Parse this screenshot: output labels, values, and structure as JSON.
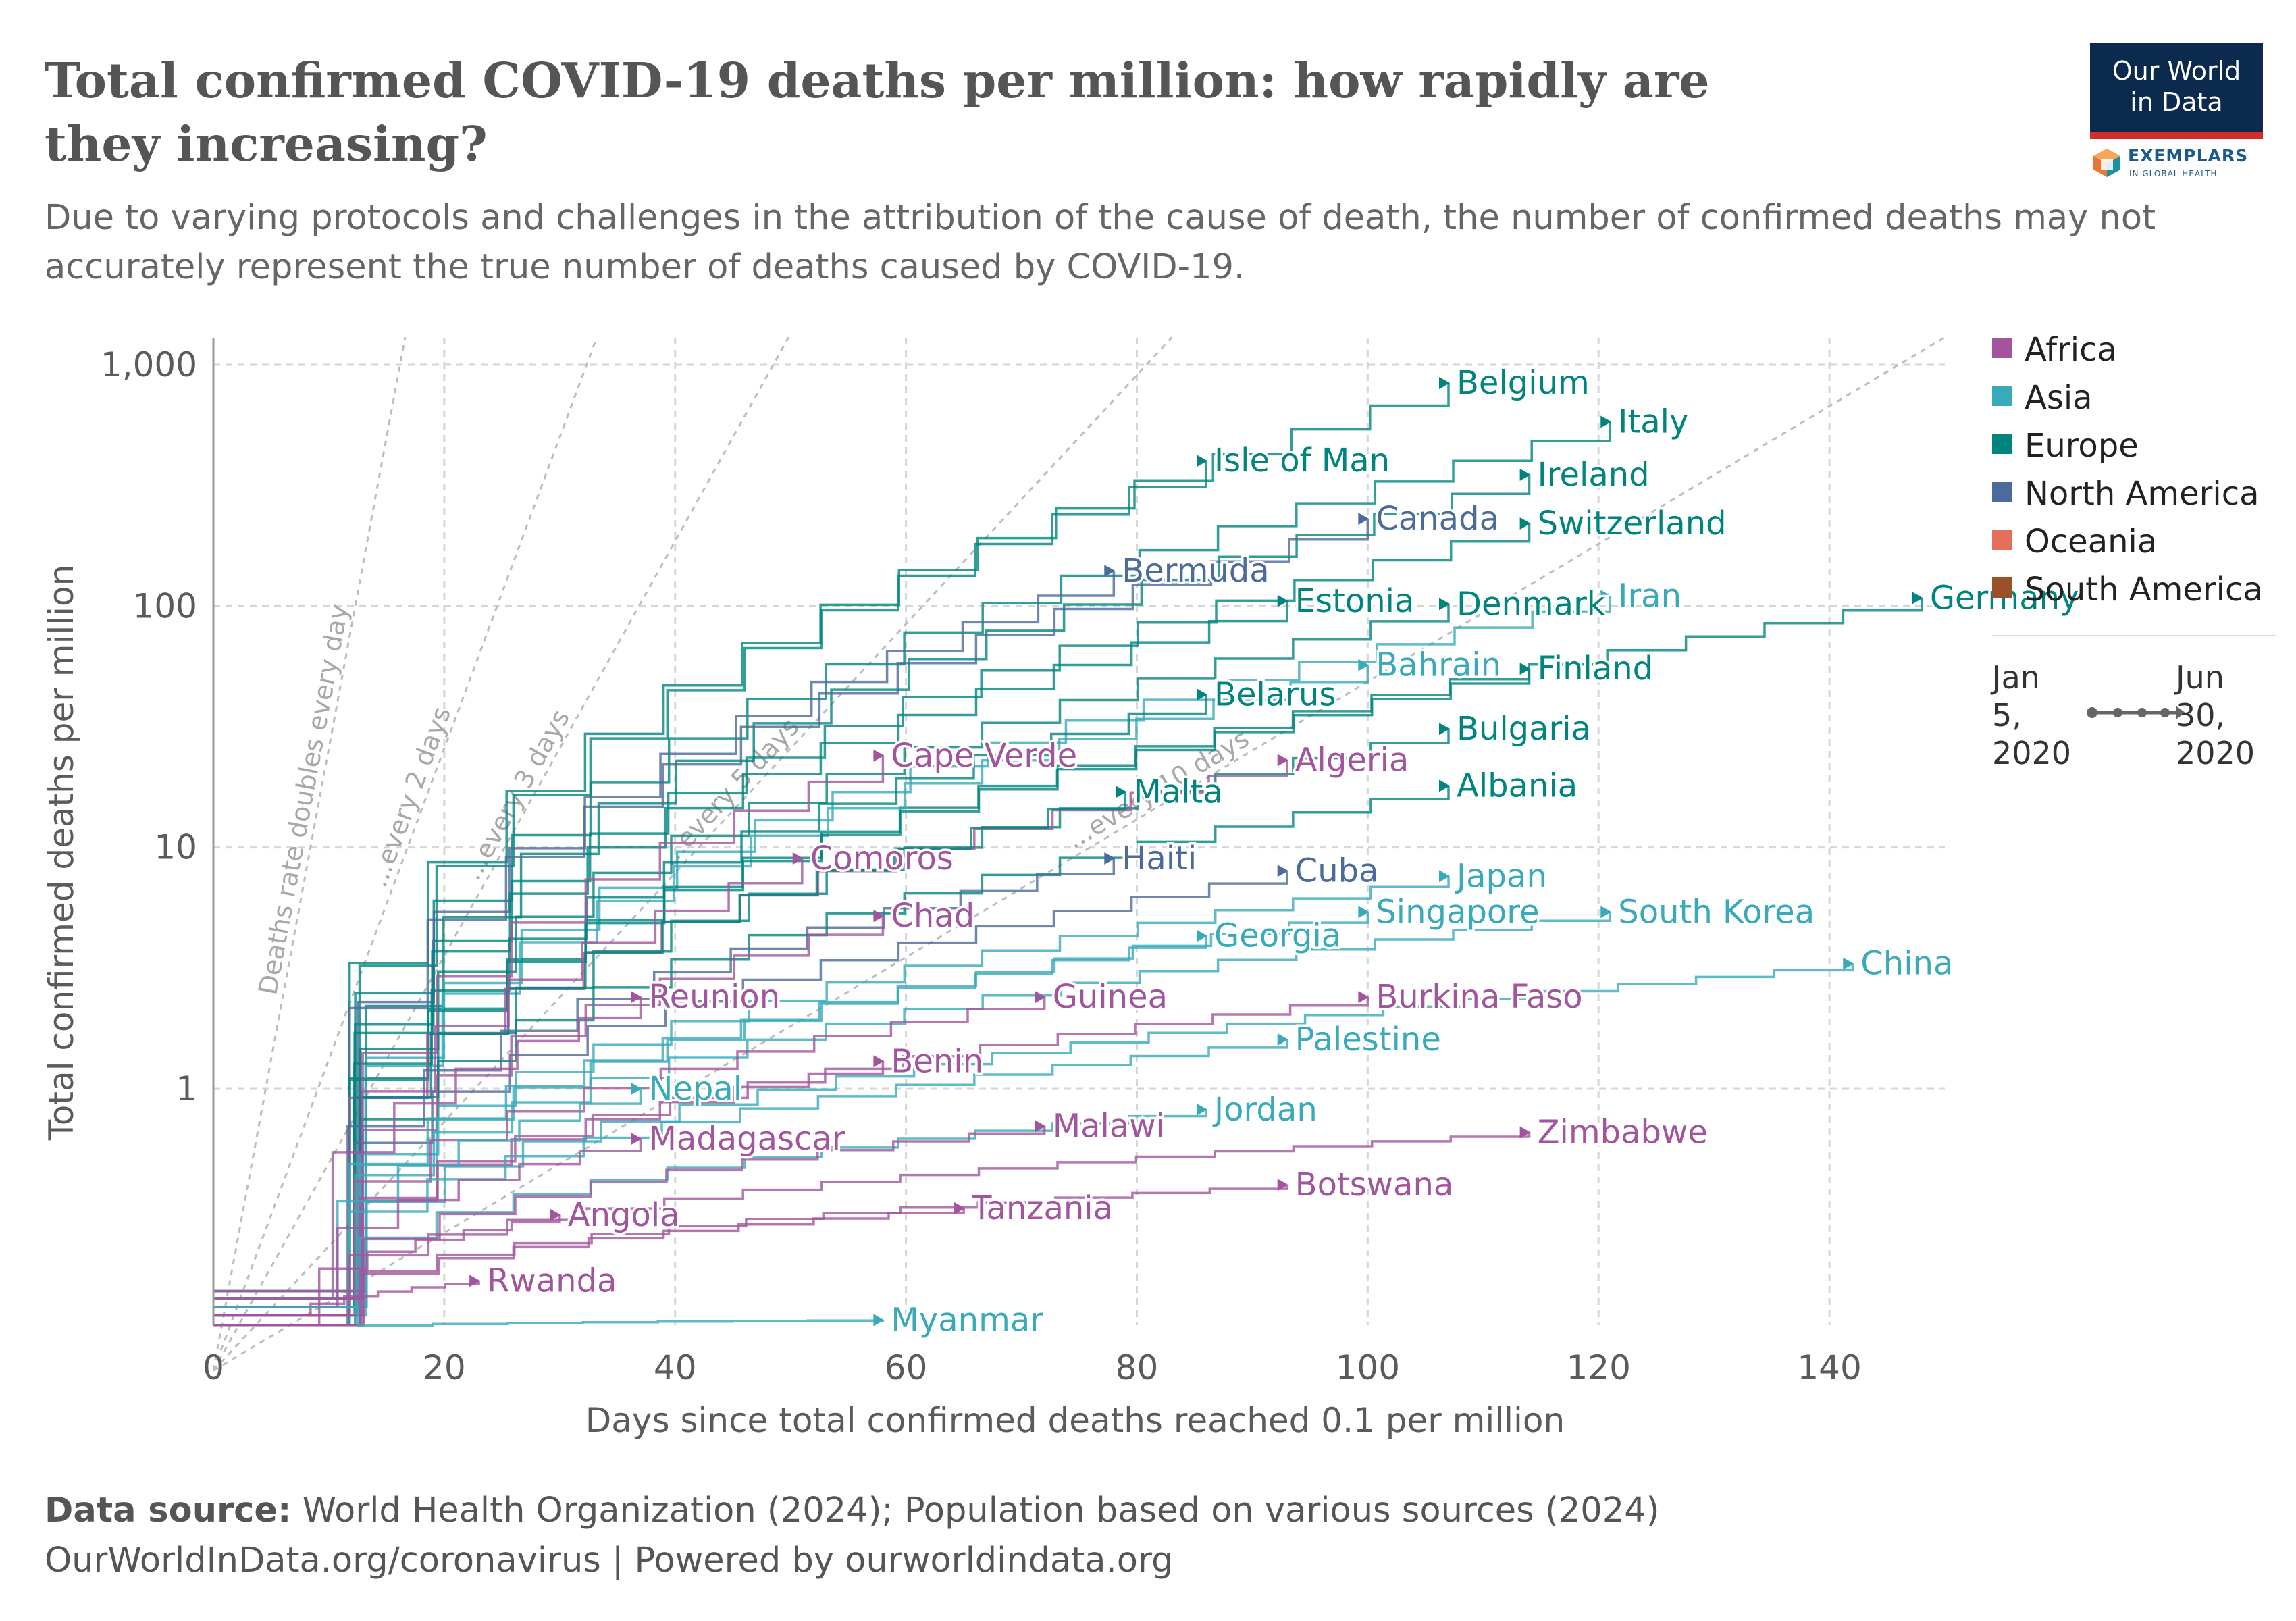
{
  "title": "Total confirmed COVID-19 deaths per million: how rapidly are they increasing?",
  "subtitle": "Due to varying protocols and challenges in the attribution of the cause of death, the number of confirmed deaths may not accurately represent the true number of deaths caused by COVID-19.",
  "logo": {
    "line1": "Our World",
    "line2": "in Data",
    "exemplars": "EXEMPLARS",
    "exemplars_sub": "IN GLOBAL HEALTH"
  },
  "legend": [
    {
      "name": "Africa",
      "color": "#a2559c"
    },
    {
      "name": "Asia",
      "color": "#38aaba"
    },
    {
      "name": "Europe",
      "color": "#00847e"
    },
    {
      "name": "North America",
      "color": "#4c6a9c"
    },
    {
      "name": "Oceania",
      "color": "#e56e5a"
    },
    {
      "name": "South America",
      "color": "#9a5129"
    }
  ],
  "timeline": {
    "start": "Jan\n5,\n2020",
    "end": "Jun\n30,\n2020"
  },
  "source_label": "Data source:",
  "source_text": "World Health Organization (2024); Population based on various sources (2024)",
  "url_text": "OurWorldInData.org/coronavirus | Powered by ourworldindata.org",
  "chart_data": {
    "type": "line",
    "title": "Total confirmed COVID-19 deaths per million: how rapidly are they increasing?",
    "xlabel": "Days since total confirmed deaths reached 0.1 per million",
    "ylabel": "Total confirmed deaths per million",
    "y_scale": "log",
    "xlim": [
      0,
      150
    ],
    "ylim": [
      0.1,
      1100
    ],
    "x_ticks": [
      0,
      20,
      40,
      60,
      80,
      100,
      120,
      140
    ],
    "y_ticks": [
      {
        "v": 1,
        "label": "1"
      },
      {
        "v": 10,
        "label": "10"
      },
      {
        "v": 100,
        "label": "100"
      },
      {
        "v": 1000,
        "label": "1,000"
      }
    ],
    "grid": true,
    "legend_position": "right",
    "reference_lines": [
      {
        "label": "Deaths rate doubles every day",
        "doubling_days": 1
      },
      {
        "label": "...every 2 days",
        "doubling_days": 2
      },
      {
        "label": "...every 3 days",
        "doubling_days": 3
      },
      {
        "label": "...every 5 days",
        "doubling_days": 5
      },
      {
        "label": "...every 10 days",
        "doubling_days": 10
      }
    ],
    "series": [
      {
        "name": "Belgium",
        "continent": "Europe",
        "x_end": 107,
        "y_end": 840
      },
      {
        "name": "Italy",
        "continent": "Europe",
        "x_end": 121,
        "y_end": 580
      },
      {
        "name": "Isle of Man",
        "continent": "Europe",
        "x_end": 86,
        "y_end": 400
      },
      {
        "name": "Ireland",
        "continent": "Europe",
        "x_end": 114,
        "y_end": 350
      },
      {
        "name": "Canada",
        "continent": "North America",
        "x_end": 100,
        "y_end": 230
      },
      {
        "name": "Switzerland",
        "continent": "Europe",
        "x_end": 114,
        "y_end": 220
      },
      {
        "name": "Bermuda",
        "continent": "North America",
        "x_end": 78,
        "y_end": 140
      },
      {
        "name": "Iran",
        "continent": "Asia",
        "x_end": 121,
        "y_end": 110
      },
      {
        "name": "Germany",
        "continent": "Europe",
        "x_end": 148,
        "y_end": 108
      },
      {
        "name": "Estonia",
        "continent": "Europe",
        "x_end": 93,
        "y_end": 105
      },
      {
        "name": "Denmark",
        "continent": "Europe",
        "x_end": 107,
        "y_end": 102
      },
      {
        "name": "Bahrain",
        "continent": "Asia",
        "x_end": 100,
        "y_end": 57
      },
      {
        "name": "Finland",
        "continent": "Europe",
        "x_end": 114,
        "y_end": 55
      },
      {
        "name": "Belarus",
        "continent": "Europe",
        "x_end": 86,
        "y_end": 43
      },
      {
        "name": "Bulgaria",
        "continent": "Europe",
        "x_end": 107,
        "y_end": 31
      },
      {
        "name": "Cape Verde",
        "continent": "Africa",
        "x_end": 58,
        "y_end": 24
      },
      {
        "name": "Algeria",
        "continent": "Africa",
        "x_end": 93,
        "y_end": 23
      },
      {
        "name": "Malta",
        "continent": "Europe",
        "x_end": 79,
        "y_end": 17
      },
      {
        "name": "Albania",
        "continent": "Europe",
        "x_end": 107,
        "y_end": 18
      },
      {
        "name": "Comoros",
        "continent": "Africa",
        "x_end": 51,
        "y_end": 9
      },
      {
        "name": "Haiti",
        "continent": "North America",
        "x_end": 78,
        "y_end": 9
      },
      {
        "name": "Cuba",
        "continent": "North America",
        "x_end": 93,
        "y_end": 8
      },
      {
        "name": "Japan",
        "continent": "Asia",
        "x_end": 107,
        "y_end": 7.6
      },
      {
        "name": "Chad",
        "continent": "Africa",
        "x_end": 58,
        "y_end": 5.2
      },
      {
        "name": "Singapore",
        "continent": "Asia",
        "x_end": 100,
        "y_end": 5.4
      },
      {
        "name": "South Korea",
        "continent": "Asia",
        "x_end": 121,
        "y_end": 5.4
      },
      {
        "name": "Georgia",
        "continent": "Asia",
        "x_end": 86,
        "y_end": 4.3
      },
      {
        "name": "China",
        "continent": "Asia",
        "x_end": 142,
        "y_end": 3.3
      },
      {
        "name": "Reunion",
        "continent": "Africa",
        "x_end": 37,
        "y_end": 2.4
      },
      {
        "name": "Guinea",
        "continent": "Africa",
        "x_end": 72,
        "y_end": 2.4
      },
      {
        "name": "Burkina Faso",
        "continent": "Africa",
        "x_end": 100,
        "y_end": 2.4
      },
      {
        "name": "Benin",
        "continent": "Africa",
        "x_end": 58,
        "y_end": 1.3
      },
      {
        "name": "Palestine",
        "continent": "Asia",
        "x_end": 93,
        "y_end": 1.6
      },
      {
        "name": "Nepal",
        "continent": "Asia",
        "x_end": 37,
        "y_end": 1.0
      },
      {
        "name": "Jordan",
        "continent": "Asia",
        "x_end": 86,
        "y_end": 0.82
      },
      {
        "name": "Malawi",
        "continent": "Africa",
        "x_end": 72,
        "y_end": 0.7
      },
      {
        "name": "Zimbabwe",
        "continent": "Africa",
        "x_end": 114,
        "y_end": 0.66
      },
      {
        "name": "Madagascar",
        "continent": "Africa",
        "x_end": 37,
        "y_end": 0.62
      },
      {
        "name": "Botswana",
        "continent": "Africa",
        "x_end": 93,
        "y_end": 0.4
      },
      {
        "name": "Tanzania",
        "continent": "Africa",
        "x_end": 65,
        "y_end": 0.32
      },
      {
        "name": "Angola",
        "continent": "Africa",
        "x_end": 30,
        "y_end": 0.3
      },
      {
        "name": "Rwanda",
        "continent": "Africa",
        "x_end": 23,
        "y_end": 0.16
      },
      {
        "name": "Myanmar",
        "continent": "Asia",
        "x_end": 58,
        "y_end": 0.11
      }
    ]
  }
}
